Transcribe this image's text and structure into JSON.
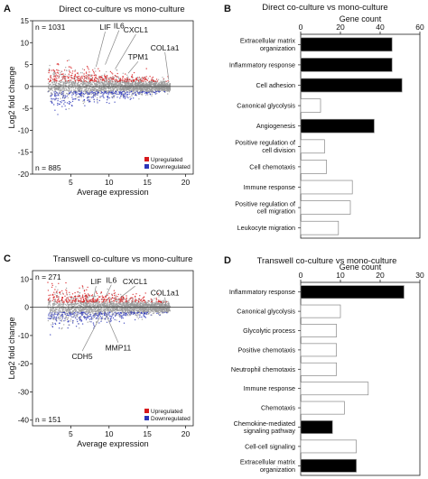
{
  "panels": {
    "A": {
      "label": "A",
      "title": "Direct co-culture vs mono-culture"
    },
    "B": {
      "label": "B",
      "title": "Direct co-culture vs mono-culture"
    },
    "C": {
      "label": "C",
      "title": "Transwell co-culture vs mono-culture"
    },
    "D": {
      "label": "D",
      "title": "Transwell co-culture vs mono-culture"
    }
  },
  "chart_data": [
    {
      "id": "A",
      "type": "scatter",
      "title": "Direct co-culture vs mono-culture",
      "xlabel": "Average expression",
      "ylabel": "Log2 fold change",
      "xlim": [
        0,
        21
      ],
      "ylim": [
        -20,
        15
      ],
      "xticks": [
        5,
        10,
        15,
        20
      ],
      "yticks": [
        -20,
        -15,
        -10,
        -5,
        0,
        5,
        10,
        15
      ],
      "n_up": "n = 1031",
      "n_down": "n = 885",
      "legend": {
        "position": "bottom-right",
        "items": [
          {
            "name": "Upregulated",
            "color": "#d7191c"
          },
          {
            "name": "Downregulated",
            "color": "#2b35b8"
          }
        ]
      },
      "annotations": [
        {
          "label": "LIF",
          "x": 9.5,
          "y": 12.5,
          "tx": 8.3,
          "ty": 4.5
        },
        {
          "label": "IL6",
          "x": 11.3,
          "y": 12.8,
          "tx": 9.5,
          "ty": 5.0
        },
        {
          "label": "CXCL1",
          "x": 13.5,
          "y": 11.9,
          "tx": 10.8,
          "ty": 4.0
        },
        {
          "label": "TPM1",
          "x": 13.8,
          "y": 5.7,
          "tx": 12.5,
          "ty": 3.0
        },
        {
          "label": "COL1a1",
          "x": 17.3,
          "y": 7.8,
          "tx": 17.8,
          "ty": 1.5
        }
      ]
    },
    {
      "id": "B",
      "type": "bar",
      "orientation": "horizontal",
      "title": "Direct co-culture vs mono-culture",
      "xlabel": "Gene count",
      "xlim": [
        0,
        60
      ],
      "xticks": [
        0,
        20,
        40,
        60
      ],
      "categories": [
        "Extracellular matrix organization",
        "Inflammatory response",
        "Cell adhesion",
        "Canonical glycolysis",
        "Angiogenesis",
        "Positive regulation of cell division",
        "Cell chemotaxis",
        "Immune response",
        "Positive regulation of cell migration",
        "Leukocyte migration"
      ],
      "values": [
        46,
        46,
        51,
        10,
        37,
        12,
        13,
        26,
        25,
        19
      ],
      "highlighted": [
        true,
        true,
        true,
        false,
        true,
        false,
        false,
        false,
        false,
        false
      ]
    },
    {
      "id": "C",
      "type": "scatter",
      "title": "Transwell co-culture vs mono-culture",
      "xlabel": "Average expression",
      "ylabel": "Log2 fold change",
      "xlim": [
        0,
        21
      ],
      "ylim": [
        -42,
        13
      ],
      "xticks": [
        5,
        10,
        15,
        20
      ],
      "yticks": [
        -40,
        -30,
        -20,
        -10,
        0,
        10
      ],
      "n_up": "n = 271",
      "n_down": "n = 151",
      "legend": {
        "position": "bottom-right",
        "items": [
          {
            "name": "Upregulated",
            "color": "#d7191c"
          },
          {
            "name": "Downregulated",
            "color": "#2b35b8"
          }
        ]
      },
      "annotations": [
        {
          "label": "LIF",
          "x": 8.3,
          "y": 7.5,
          "tx": 8.0,
          "ty": 3.5
        },
        {
          "label": "IL6",
          "x": 10.3,
          "y": 8.0,
          "tx": 9.6,
          "ty": 4.0
        },
        {
          "label": "CXCL1",
          "x": 13.4,
          "y": 7.5,
          "tx": 11.5,
          "ty": 3.5
        },
        {
          "label": "COL1a1",
          "x": 17.3,
          "y": 3.5,
          "tx": 17.5,
          "ty": -1.0
        },
        {
          "label": "CDH5",
          "x": 6.5,
          "y": -15.5,
          "tx": 8.8,
          "ty": -3.5
        },
        {
          "label": "MMP11",
          "x": 11.2,
          "y": -12.5,
          "tx": 9.5,
          "ty": -2.0
        }
      ]
    },
    {
      "id": "D",
      "type": "bar",
      "orientation": "horizontal",
      "title": "Transwell co-culture vs mono-culture",
      "xlabel": "Gene count",
      "xlim": [
        0,
        30
      ],
      "xticks": [
        0,
        10,
        20,
        30
      ],
      "categories": [
        "Inflammatory response",
        "Canonical glycolysis",
        "Glycolytic process",
        "Positive chemotaxis",
        "Neutrophil chemotaxis",
        "Immune response",
        "Chemotaxis",
        "Chemokine-mediated signaling pathway",
        "Cell-cell signaling",
        "Extracellular matrix organization"
      ],
      "values": [
        26,
        10,
        9,
        9,
        9,
        17,
        11,
        8,
        14,
        14
      ],
      "highlighted": [
        true,
        false,
        false,
        false,
        false,
        false,
        false,
        true,
        false,
        true
      ]
    }
  ]
}
